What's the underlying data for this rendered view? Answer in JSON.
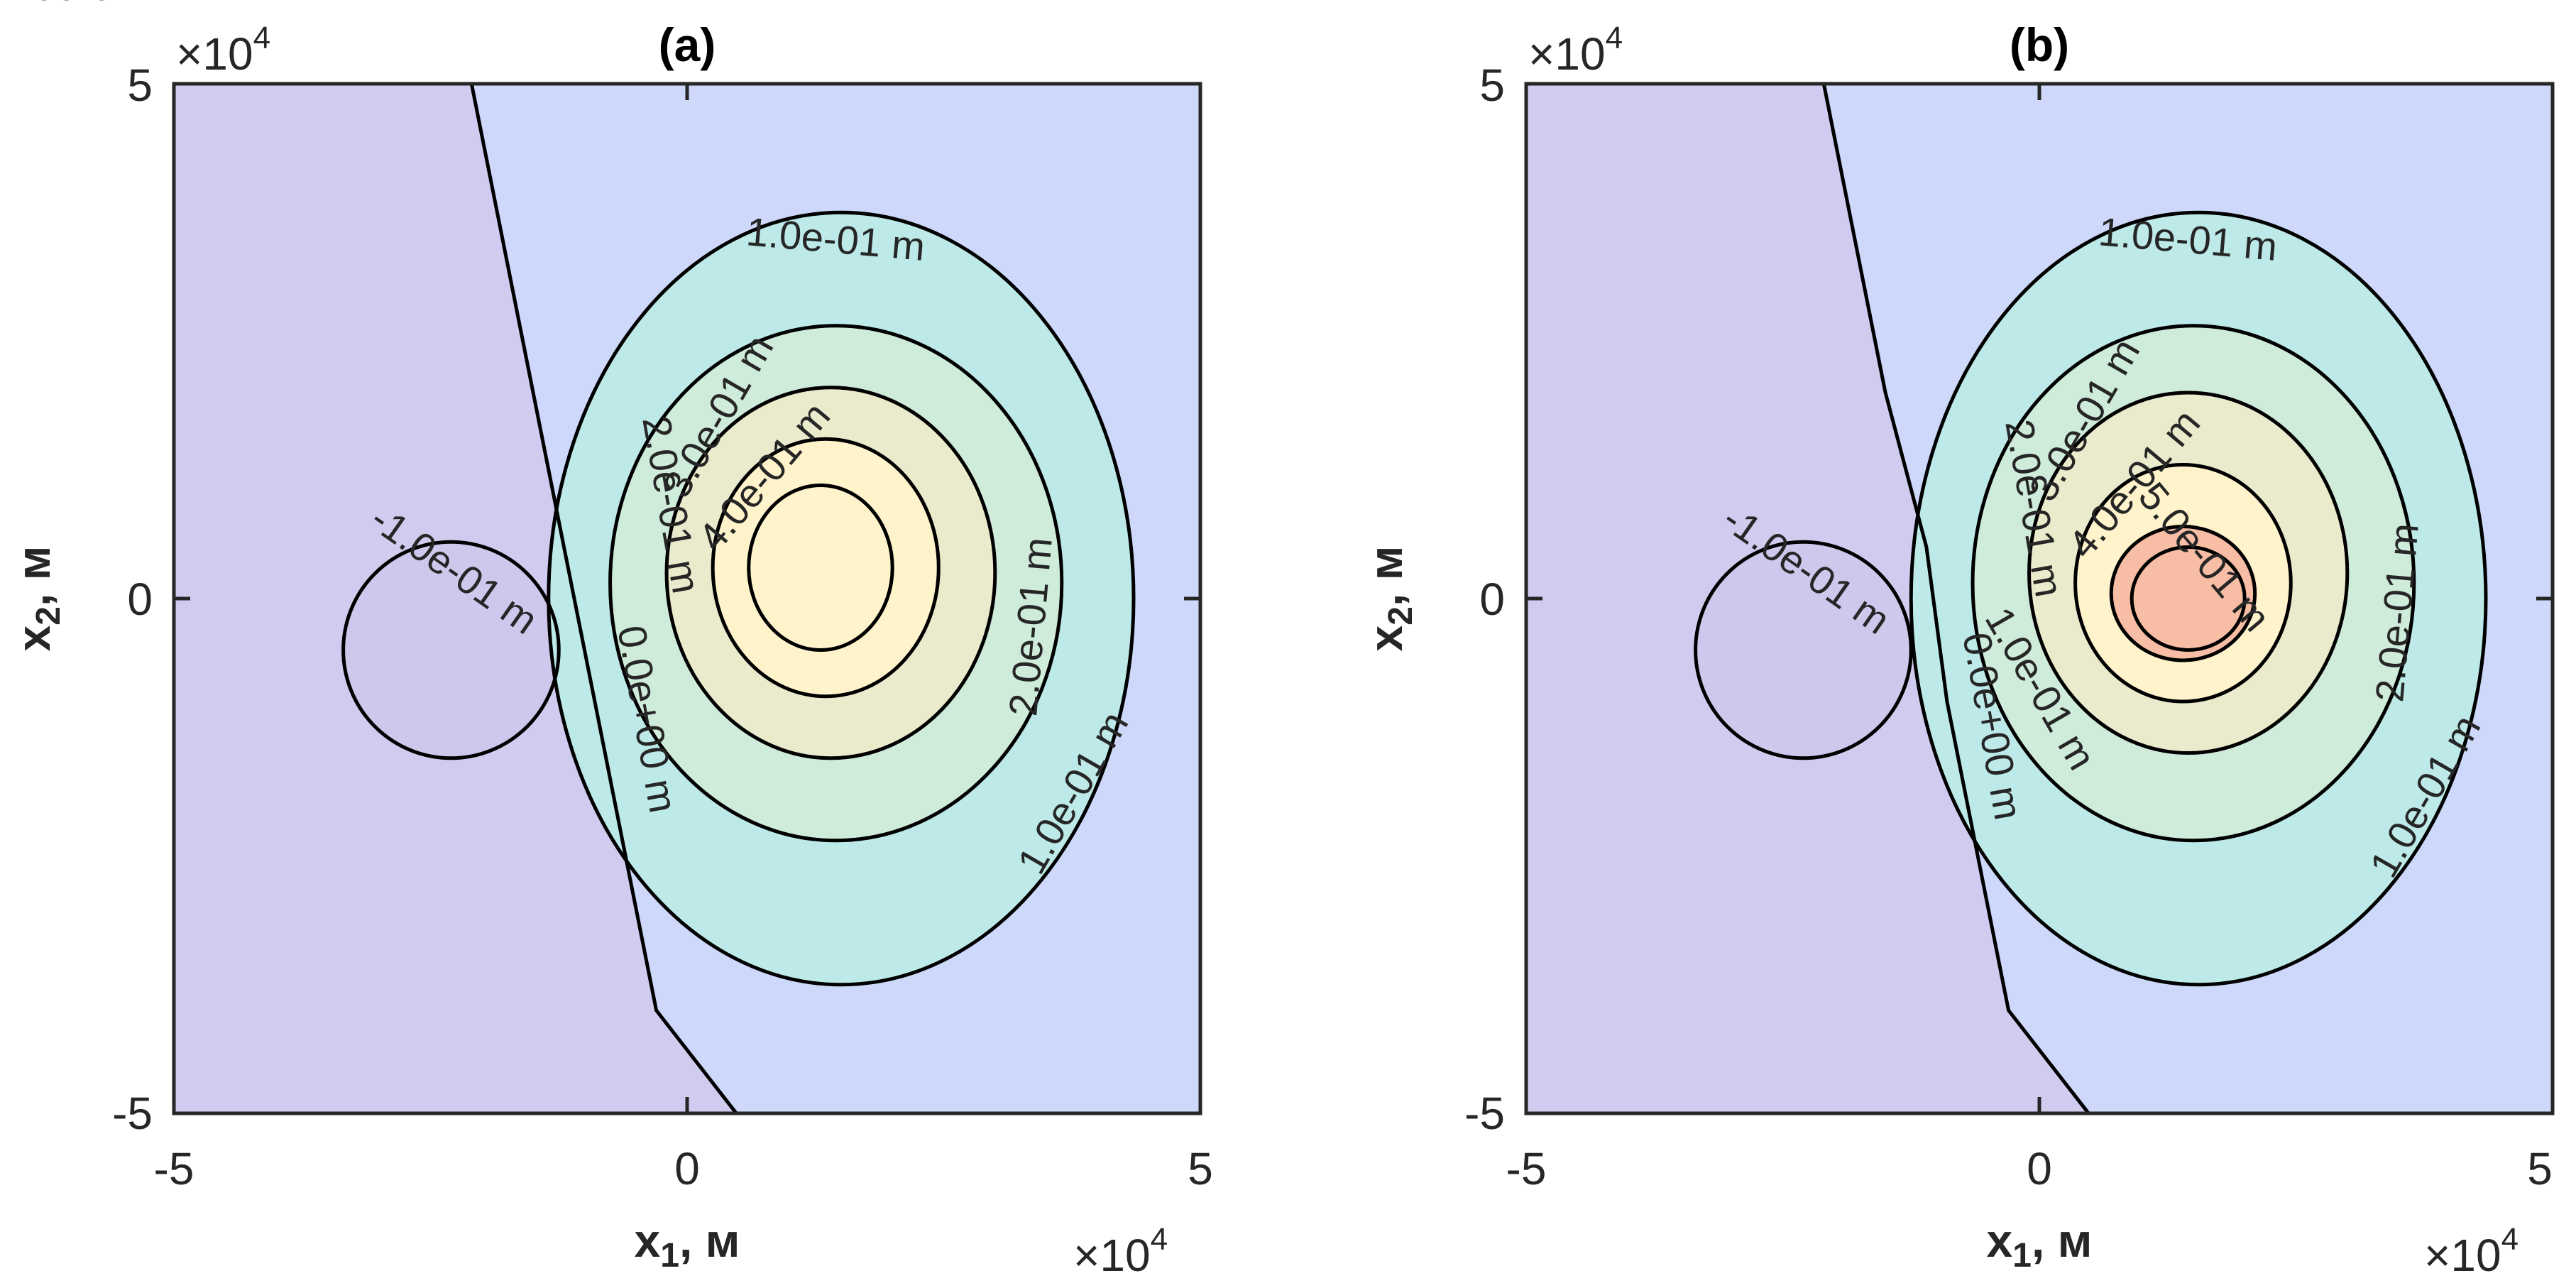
{
  "chart_data": [
    {
      "type": "contour",
      "title": "(a)",
      "xlabel": {
        "main": "x",
        "sub": "1",
        "unit": ", м"
      },
      "ylabel": {
        "main": "x",
        "sub": "2",
        "unit": ", м"
      },
      "xlim": [
        -50000,
        50000
      ],
      "ylim": [
        -50000,
        50000
      ],
      "xticks": [
        "-5",
        "0",
        "5"
      ],
      "yticks": [
        "5",
        "0",
        "-5"
      ],
      "x_exponent": "×10",
      "x_exponent_power": "4",
      "y_exponent": "×10",
      "y_exponent_power": "4",
      "levels": [
        -0.1,
        0.0,
        0.1,
        0.2,
        0.3,
        0.4,
        0.5
      ],
      "fill_colors": [
        "#D0CCF0",
        "#CDD8FB",
        "#C6E3F5",
        "#BDEAE8",
        "#CFEBD9",
        "#EAEBCC",
        "#FFF3CC"
      ],
      "zero_line": [
        [
          -21000,
          50000
        ],
        [
          -18000,
          35000
        ],
        [
          -15000,
          20000
        ],
        [
          -12000,
          5000
        ],
        [
          -9000,
          -10000
        ],
        [
          -6000,
          -25000
        ],
        [
          -3000,
          -40000
        ],
        [
          4800,
          -50000
        ]
      ],
      "contours": [
        {
          "level": -0.1,
          "center": [
            -23000,
            -5000
          ],
          "radius": [
            10500,
            10500
          ],
          "label": "-1.0e-01 m"
        },
        {
          "level": 0.1,
          "center": [
            15000,
            0
          ],
          "radius": [
            28500,
            37500
          ],
          "label": "1.0e-01 m"
        },
        {
          "level": 0.2,
          "center": [
            14500,
            1500
          ],
          "radius": [
            22000,
            25000
          ],
          "label": "2.0e-01 m"
        },
        {
          "level": 0.3,
          "center": [
            14000,
            2500
          ],
          "radius": [
            16000,
            18000
          ],
          "label": "3.0e-01 m"
        },
        {
          "level": 0.4,
          "center": [
            13500,
            3000
          ],
          "radius": [
            11000,
            12500
          ],
          "label": "4.0e-01 m"
        },
        {
          "level": 0.5,
          "center": [
            13000,
            3000
          ],
          "radius": [
            7000,
            8000
          ],
          "label": ""
        }
      ],
      "contour_labels": [
        "1.0e-01 m",
        "-1.0e-01 m",
        "2.0e-01 m",
        "3.0e-01 m",
        "4.0e-01 m",
        "2.0e-01 m",
        "1.0e-01 m",
        "0.0e+00 m"
      ]
    },
    {
      "type": "contour",
      "title": "(b)",
      "xlabel": {
        "main": "x",
        "sub": "1",
        "unit": ", м"
      },
      "ylabel": {
        "main": "x",
        "sub": "2",
        "unit": ", м"
      },
      "xlim": [
        -50000,
        50000
      ],
      "ylim": [
        -50000,
        50000
      ],
      "xticks": [
        "-5",
        "0",
        "5"
      ],
      "yticks": [
        "5",
        "0",
        "-5"
      ],
      "x_exponent": "×10",
      "x_exponent_power": "4",
      "y_exponent": "×10",
      "y_exponent_power": "4",
      "levels": [
        -0.1,
        0.0,
        0.1,
        0.2,
        0.3,
        0.4,
        0.5,
        0.6
      ],
      "fill_colors": [
        "#D0CCF0",
        "#CDD8FB",
        "#C6E3F5",
        "#BDEAE8",
        "#CFEBD9",
        "#EAEBCC",
        "#FFF3CC",
        "#F8BEA5"
      ],
      "zero_line": [
        [
          -21000,
          50000
        ],
        [
          -18000,
          35000
        ],
        [
          -15000,
          20000
        ],
        [
          -11000,
          5000
        ],
        [
          -9000,
          -10000
        ],
        [
          -6000,
          -25000
        ],
        [
          -3000,
          -40000
        ],
        [
          4800,
          -50000
        ]
      ],
      "contours": [
        {
          "level": -0.1,
          "center": [
            -23000,
            -5000
          ],
          "radius": [
            10500,
            10500
          ],
          "label": "-1.0e-01 m"
        },
        {
          "level": 0.1,
          "center": [
            15500,
            0
          ],
          "radius": [
            28000,
            37500
          ],
          "label": "1.0e-01 m"
        },
        {
          "level": 0.2,
          "center": [
            15000,
            1500
          ],
          "radius": [
            21500,
            25000
          ],
          "label": "2.0e-01 m"
        },
        {
          "level": 0.3,
          "center": [
            14500,
            2500
          ],
          "radius": [
            15500,
            17500
          ],
          "label": "3.0e-01 m"
        },
        {
          "level": 0.4,
          "center": [
            14000,
            1500
          ],
          "radius": [
            10500,
            11500
          ],
          "label": "4.0e-01 m"
        },
        {
          "level": 0.5,
          "center": [
            14000,
            500
          ],
          "radius": [
            7000,
            6500
          ],
          "label": ""
        },
        {
          "level": 0.6,
          "center": [
            14500,
            0
          ],
          "radius": [
            5500,
            5000
          ],
          "label": ""
        }
      ],
      "contour_labels": [
        "1.0e-01 m",
        "-1.0e-01 m",
        "2.0e-01 m",
        "3.0e-01 m",
        "4.0e-01 m",
        "5.0e-01 m",
        "2.0e-01 m",
        "1.0e-01 m",
        "1.0e-01 m",
        "0.0e+00 m"
      ]
    }
  ]
}
